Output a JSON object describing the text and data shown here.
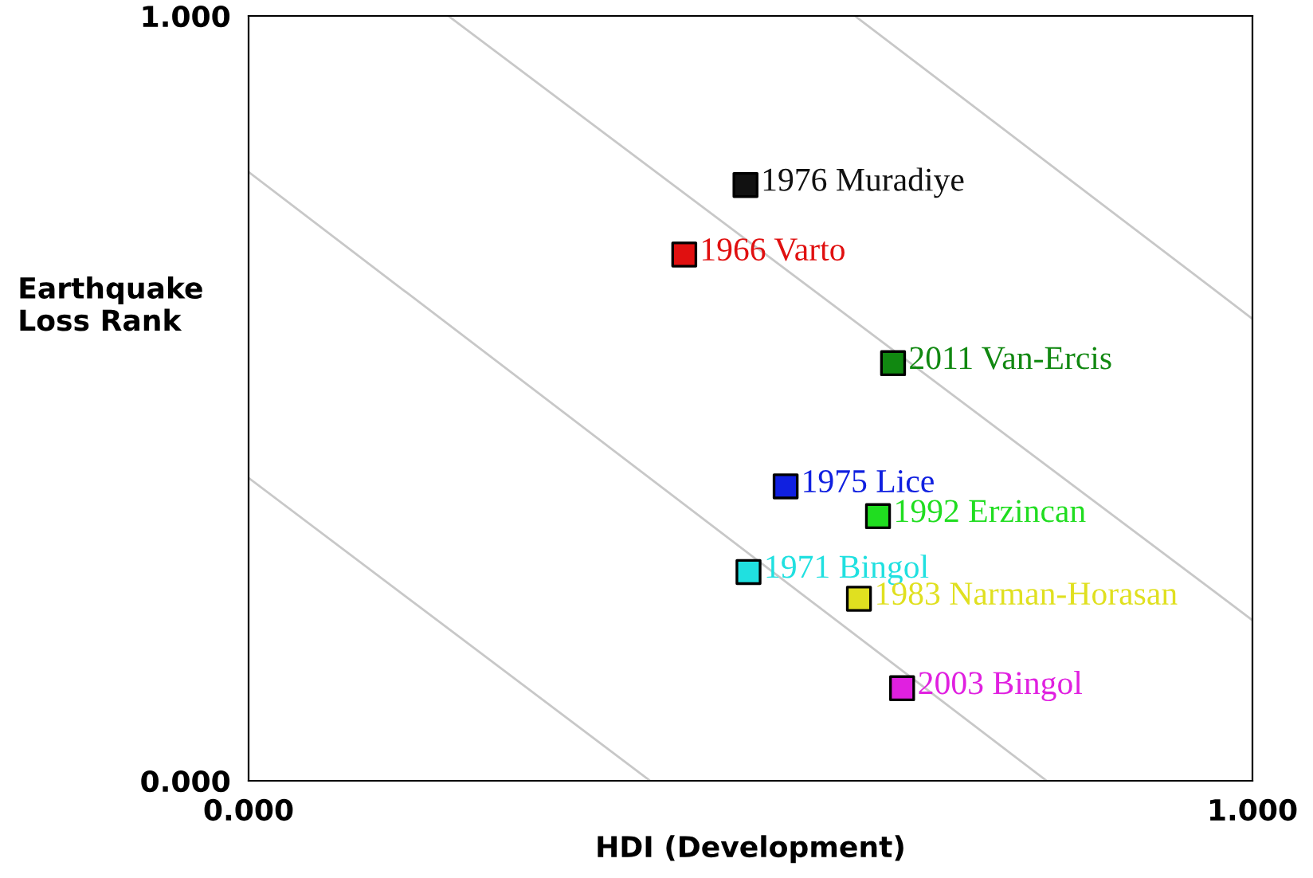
{
  "chart_data": {
    "type": "scatter",
    "xlabel": "HDI (Development)",
    "ylabel": "Earthquake\nLoss Rank",
    "xlim": [
      0,
      1
    ],
    "ylim": [
      0,
      1
    ],
    "xticks": [
      {
        "value": 0,
        "label": "0.000"
      },
      {
        "value": 1,
        "label": "1.000"
      }
    ],
    "yticks": [
      {
        "value": 0,
        "label": "0.000"
      },
      {
        "value": 1,
        "label": "1.000"
      }
    ],
    "grid": false,
    "marker": "square",
    "series": [
      {
        "type": "line",
        "marker": "none",
        "color": "#c8c8c8",
        "x": [
          0,
          0.4
        ],
        "values": [
          0.396,
          0
        ]
      },
      {
        "type": "line",
        "marker": "none",
        "color": "#c8c8c8",
        "x": [
          0,
          0.795
        ],
        "values": [
          0.796,
          0
        ]
      },
      {
        "type": "line",
        "marker": "none",
        "color": "#c8c8c8",
        "x": [
          0.199,
          1
        ],
        "values": [
          1,
          0.21
        ]
      },
      {
        "type": "line",
        "marker": "none",
        "color": "#c8c8c8",
        "x": [
          0.604,
          1
        ],
        "values": [
          1,
          0.604
        ]
      },
      {
        "name": "1976 Muradiye",
        "color": "#111111",
        "x": [
          0.495
        ],
        "values": [
          0.779
        ]
      },
      {
        "name": "1966 Varto",
        "color": "#e01010",
        "x": [
          0.434
        ],
        "values": [
          0.688
        ]
      },
      {
        "name": "2011 Van-Ercis",
        "color": "#118811",
        "x": [
          0.642
        ],
        "values": [
          0.546
        ]
      },
      {
        "name": "1975 Lice",
        "color": "#1020e0",
        "x": [
          0.535
        ],
        "values": [
          0.385
        ]
      },
      {
        "name": "1992 Erzincan",
        "color": "#20dd20",
        "x": [
          0.627
        ],
        "values": [
          0.346
        ]
      },
      {
        "name": "1971 Bingol",
        "color": "#20e0e0",
        "x": [
          0.498
        ],
        "values": [
          0.273
        ]
      },
      {
        "name": "1983 Narman-Horasan",
        "color": "#e0e020",
        "x": [
          0.608
        ],
        "values": [
          0.238
        ]
      },
      {
        "name": "2003 Bingol",
        "color": "#e020e0",
        "x": [
          0.651
        ],
        "values": [
          0.121
        ]
      }
    ]
  }
}
